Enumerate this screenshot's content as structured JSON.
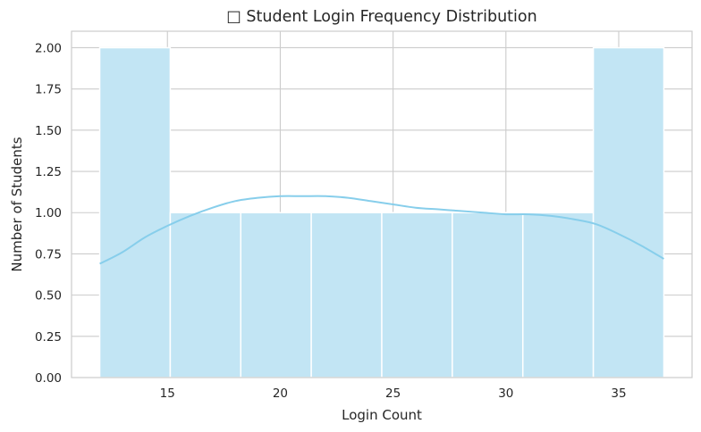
{
  "chart_data": {
    "type": "bar",
    "subtype": "histogram-with-kde",
    "title": "□ Student Login Frequency Distribution",
    "xlabel": "Login Count",
    "ylabel": "Number of Students",
    "xlim": [
      10.75,
      38.25
    ],
    "ylim": [
      0,
      2.1
    ],
    "xticks": [
      15,
      20,
      25,
      30,
      35
    ],
    "xtick_labels": [
      "15",
      "20",
      "25",
      "30",
      "35"
    ],
    "yticks": [
      0,
      0.25,
      0.5,
      0.75,
      1.0,
      1.25,
      1.5,
      1.75,
      2.0
    ],
    "ytick_labels": [
      "0.00",
      "0.25",
      "0.50",
      "0.75",
      "1.00",
      "1.25",
      "1.50",
      "1.75",
      "2.00"
    ],
    "bins": [
      {
        "x0": 12.0,
        "x1": 15.125,
        "count": 2
      },
      {
        "x0": 15.125,
        "x1": 18.25,
        "count": 1
      },
      {
        "x0": 18.25,
        "x1": 21.375,
        "count": 1
      },
      {
        "x0": 21.375,
        "x1": 24.5,
        "count": 1
      },
      {
        "x0": 24.5,
        "x1": 27.625,
        "count": 1
      },
      {
        "x0": 27.625,
        "x1": 30.75,
        "count": 1
      },
      {
        "x0": 30.75,
        "x1": 33.875,
        "count": 1
      },
      {
        "x0": 33.875,
        "x1": 37.0,
        "count": 2
      }
    ],
    "kde": {
      "x": [
        12,
        13,
        14,
        15,
        16,
        17,
        18,
        19,
        20,
        21,
        22,
        23,
        24,
        25,
        26,
        27,
        28,
        29,
        30,
        31,
        32,
        33,
        34,
        35,
        36,
        37
      ],
      "y": [
        0.69,
        0.76,
        0.85,
        0.92,
        0.98,
        1.03,
        1.07,
        1.09,
        1.1,
        1.1,
        1.1,
        1.09,
        1.07,
        1.05,
        1.03,
        1.02,
        1.01,
        1.0,
        0.99,
        0.99,
        0.98,
        0.96,
        0.93,
        0.87,
        0.8,
        0.72
      ]
    },
    "grid": true,
    "legend": "none",
    "colors": {
      "bar_fill": "#c2e5f4",
      "bar_edge": "#ffffff",
      "kde_line": "#87ceeb",
      "grid": "#cccccc",
      "spine": "#cccccc"
    }
  }
}
